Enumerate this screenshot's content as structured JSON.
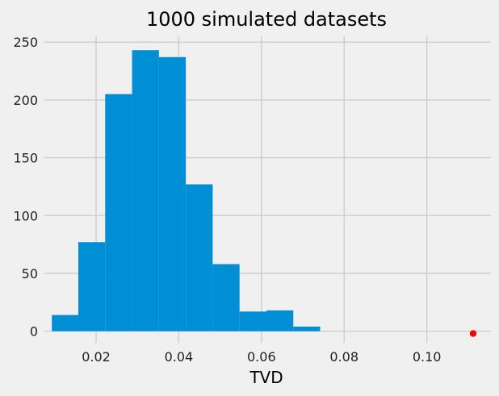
{
  "chart_data": {
    "type": "histogram",
    "title": "1000 simulated datasets",
    "xlabel": "TVD",
    "ylabel": "",
    "xlim": [
      0.0075,
      0.1155
    ],
    "ylim": [
      -10,
      255
    ],
    "xticks": [
      0.02,
      0.04,
      0.06,
      0.08,
      0.1
    ],
    "xtick_labels": [
      "0.02",
      "0.04",
      "0.06",
      "0.08",
      "0.10"
    ],
    "yticks": [
      0,
      50,
      100,
      150,
      200,
      250
    ],
    "ytick_labels": [
      "0",
      "50",
      "100",
      "150",
      "200",
      "250"
    ],
    "grid": true,
    "bars": [
      {
        "x0": 0.0093,
        "x1": 0.0157,
        "count": 14
      },
      {
        "x0": 0.0157,
        "x1": 0.0222,
        "count": 77
      },
      {
        "x0": 0.0222,
        "x1": 0.0287,
        "count": 205
      },
      {
        "x0": 0.0287,
        "x1": 0.0352,
        "count": 243
      },
      {
        "x0": 0.0352,
        "x1": 0.0417,
        "count": 237
      },
      {
        "x0": 0.0417,
        "x1": 0.0482,
        "count": 127
      },
      {
        "x0": 0.0482,
        "x1": 0.0547,
        "count": 58
      },
      {
        "x0": 0.0547,
        "x1": 0.0612,
        "count": 17
      },
      {
        "x0": 0.0612,
        "x1": 0.0677,
        "count": 18
      },
      {
        "x0": 0.0677,
        "x1": 0.0742,
        "count": 4
      }
    ],
    "observed_point": {
      "x": 0.1112,
      "y": -2
    },
    "colors": {
      "bars": "#008fd5",
      "observed_point": "#ff0000",
      "background": "#f0f0f0",
      "grid": "#cbcbcb"
    }
  }
}
